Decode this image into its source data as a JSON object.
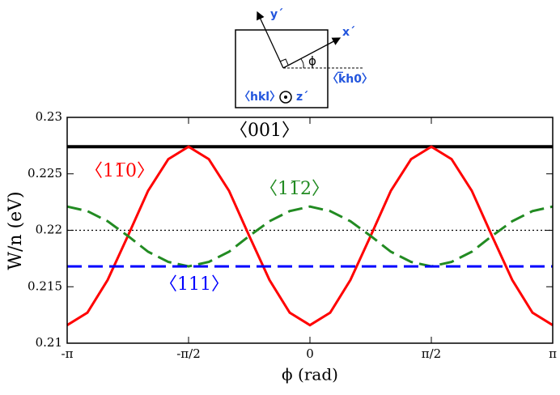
{
  "chart_data": {
    "type": "line",
    "x_label": "ϕ (rad)",
    "y_label": "W/n (eV)",
    "xlim": [
      -3.1416,
      3.1416
    ],
    "xticks": [
      {
        "value": -3.1416,
        "label": "-π"
      },
      {
        "value": -1.5708,
        "label": "-π/2"
      },
      0,
      {
        "value": 1.5708,
        "label": "π/2"
      },
      {
        "value": 3.1416,
        "label": "π"
      }
    ],
    "ylim": [
      0.21,
      0.23
    ],
    "yticks": [
      0.21,
      0.215,
      0.22,
      0.225,
      0.23
    ],
    "hline": {
      "value": 0.22,
      "color": "#000000",
      "style": "dotted"
    },
    "x": [
      -3.1416,
      -2.8798,
      -2.618,
      -2.3562,
      -2.0944,
      -1.8326,
      -1.5708,
      -1.309,
      -1.0472,
      -0.7854,
      -0.5236,
      -0.2618,
      0,
      0.2618,
      0.5236,
      0.7854,
      1.0472,
      1.309,
      1.5708,
      1.8326,
      2.0944,
      2.3562,
      2.618,
      2.8798,
      3.1416
    ],
    "series": [
      {
        "name": "〈001〉",
        "color": "#000000",
        "style": "solid",
        "values": [
          0.2274,
          0.2274,
          0.2274,
          0.2274,
          0.2274,
          0.2274,
          0.2274,
          0.2274,
          0.2274,
          0.2274,
          0.2274,
          0.2274,
          0.2274,
          0.2274,
          0.2274,
          0.2274,
          0.2274,
          0.2274,
          0.2274,
          0.2274,
          0.2274,
          0.2274,
          0.2274,
          0.2274,
          0.2274
        ]
      },
      {
        "name": "〈11̅0〉",
        "color": "#ff0000",
        "style": "solid",
        "values": [
          0.2116,
          0.2127,
          0.2156,
          0.2195,
          0.2235,
          0.2263,
          0.2274,
          0.2263,
          0.2235,
          0.2195,
          0.2156,
          0.2127,
          0.2116,
          0.2127,
          0.2156,
          0.2195,
          0.2235,
          0.2263,
          0.2274,
          0.2263,
          0.2235,
          0.2195,
          0.2156,
          0.2127,
          0.2116
        ]
      },
      {
        "name": "〈11̅2〉",
        "color": "#228b22",
        "style": "dashed",
        "values": [
          0.2221,
          0.2217,
          0.2208,
          0.2195,
          0.2181,
          0.2172,
          0.2168,
          0.2172,
          0.2181,
          0.2195,
          0.2208,
          0.2217,
          0.2221,
          0.2217,
          0.2208,
          0.2195,
          0.2181,
          0.2172,
          0.2168,
          0.2172,
          0.2181,
          0.2195,
          0.2208,
          0.2217,
          0.2221
        ]
      },
      {
        "name": "〈111〉",
        "color": "#0000ff",
        "style": "dashed",
        "values": [
          0.2168,
          0.2168,
          0.2168,
          0.2168,
          0.2168,
          0.2168,
          0.2168,
          0.2168,
          0.2168,
          0.2168,
          0.2168,
          0.2168,
          0.2168,
          0.2168,
          0.2168,
          0.2168,
          0.2168,
          0.2168,
          0.2168,
          0.2168,
          0.2168,
          0.2168,
          0.2168,
          0.2168,
          0.2168
        ]
      }
    ]
  },
  "inset": {
    "y_axis": "y´",
    "x_axis": "x´",
    "angle": "ϕ",
    "direction": "〈k̅h0〉",
    "plane": "〈hkl〉",
    "z_axis": "z´"
  }
}
